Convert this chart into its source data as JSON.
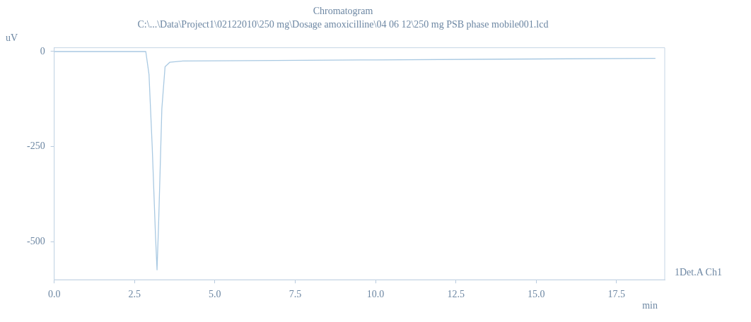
{
  "chart_data": {
    "type": "line",
    "title": "Chromatogram",
    "subtitle": "C:\\...\\Data\\Project1\\02122010\\250 mg\\Dosage amoxicilline\\04 06 12\\250 mg PSB phase mobile001.lcd",
    "xlabel": "min",
    "ylabel": "uV",
    "series": [
      {
        "name": "1Det.A Ch1",
        "color": "#a9c9e2",
        "x": [
          0,
          1.5,
          2.85,
          2.95,
          3.05,
          3.15,
          3.2,
          3.25,
          3.35,
          3.45,
          3.6,
          4,
          6,
          10,
          14,
          18.7
        ],
        "values": [
          0,
          0,
          0,
          -60,
          -250,
          -480,
          -574,
          -450,
          -150,
          -40,
          -28,
          -25,
          -24,
          -22,
          -20,
          -18
        ]
      }
    ],
    "xlim": [
      0,
      19
    ],
    "xticks": [
      {
        "value": 0,
        "label": "0.0"
      },
      {
        "value": 2.5,
        "label": "2.5"
      },
      {
        "value": 5,
        "label": "5.0"
      },
      {
        "value": 7.5,
        "label": "7.5"
      },
      {
        "value": 10,
        "label": "10.0"
      },
      {
        "value": 12.5,
        "label": "12.5"
      },
      {
        "value": 15,
        "label": "15.0"
      },
      {
        "value": 17.5,
        "label": "17.5"
      }
    ],
    "ylim": [
      -600,
      10
    ],
    "yticks": [
      0,
      -250,
      -500
    ],
    "grid": false,
    "legend": false,
    "marker": "none",
    "line_style": "solid"
  }
}
